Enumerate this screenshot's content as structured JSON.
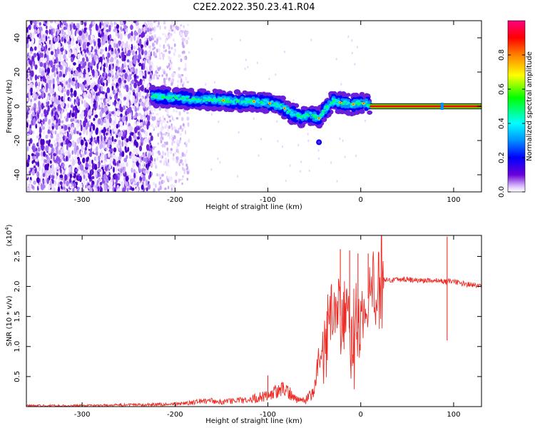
{
  "title": "C2E2.2022.350.23.41.R04",
  "chart_data": [
    {
      "type": "heatmap",
      "title": "C2E2.2022.350.23.41.R04",
      "xlabel": "Height of straight line (km)",
      "ylabel": "Frequency (Hz)",
      "xlim": [
        -360,
        130
      ],
      "ylim": [
        -50,
        50
      ],
      "x_ticks": [
        -300,
        -200,
        -100,
        0,
        100
      ],
      "y_ticks": [
        -40,
        -20,
        0,
        20,
        40
      ],
      "grid": false,
      "colorbar": {
        "label": "Normalized spectral amplitude",
        "range": [
          0.0,
          1.0
        ],
        "ticks": [
          0.0,
          0.2,
          0.4,
          0.6,
          0.8
        ],
        "colormap": [
          "#ffffff",
          "#6a00d8",
          "#0000ff",
          "#00e0ff",
          "#00ff00",
          "#ffff00",
          "#ff8000",
          "#ff0000",
          "#ff0080"
        ]
      },
      "features": [
        {
          "name": "broadband noise",
          "x_range": [
            -360,
            -225
          ],
          "y_range": [
            -50,
            50
          ],
          "amplitude": 0.1
        },
        {
          "name": "fading noise",
          "x_range": [
            -225,
            -185
          ],
          "y_range": [
            -50,
            50
          ],
          "amplitude": 0.05
        },
        {
          "name": "signal track",
          "amplitude": 0.55,
          "x": [
            -225,
            -200,
            -180,
            -160,
            -140,
            -120,
            -100,
            -85,
            -75,
            -65,
            -55,
            -45,
            -40,
            -35,
            -30,
            -20,
            -10,
            0,
            10
          ],
          "y": [
            6,
            5,
            4,
            4,
            3,
            3,
            2,
            0,
            -4,
            -6,
            -5,
            -7,
            -3,
            0,
            3,
            2,
            1,
            2,
            1
          ]
        },
        {
          "name": "steady carrier",
          "x_range": [
            10,
            130
          ],
          "y": 0,
          "amplitude": 0.95
        },
        {
          "name": "blob",
          "x": -45,
          "y": -21,
          "amplitude": 0.3
        }
      ]
    },
    {
      "type": "line",
      "xlabel": "Height of straight line (km)",
      "ylabel": "SNR (10 * v/v)",
      "y_multiplier": "(x10^4)",
      "xlim": [
        -360,
        130
      ],
      "ylim": [
        0,
        2.85
      ],
      "x_ticks": [
        -300,
        -200,
        -100,
        0,
        100
      ],
      "y_ticks": [
        0.5,
        1.0,
        1.5,
        2.0,
        2.5
      ],
      "grid": false,
      "series": [
        {
          "color": "#ee2a24",
          "x": [
            -360,
            -300,
            -250,
            -200,
            -180,
            -170,
            -150,
            -120,
            -100,
            -90,
            -80,
            -70,
            -60,
            -50,
            -45,
            -40,
            -35,
            -30,
            -25,
            -20,
            -15,
            -10,
            -5,
            0,
            5,
            10,
            15,
            20,
            25,
            30,
            40,
            50,
            60,
            70,
            80,
            90,
            100,
            110,
            120,
            130
          ],
          "y": [
            0.01,
            0.01,
            0.02,
            0.03,
            0.05,
            0.08,
            0.06,
            0.09,
            0.15,
            0.2,
            0.22,
            0.1,
            0.08,
            0.2,
            0.6,
            0.95,
            1.4,
            1.65,
            1.75,
            1.35,
            1.5,
            1.05,
            1.2,
            1.45,
            1.65,
            1.9,
            2.05,
            2.15,
            2.12,
            2.1,
            2.12,
            2.12,
            2.1,
            2.1,
            2.1,
            2.08,
            2.08,
            2.05,
            2.02,
            2.0
          ]
        }
      ],
      "spikes": [
        {
          "x": -100,
          "y": 0.52
        },
        {
          "x": -22,
          "y": 2.62
        },
        {
          "x": -12,
          "y": 2.6
        },
        {
          "x": -3,
          "y": 2.55
        },
        {
          "x": 8,
          "y": 2.55
        },
        {
          "x": 93,
          "y": 2.83
        },
        {
          "x": 93,
          "y": 1.1
        }
      ]
    }
  ]
}
